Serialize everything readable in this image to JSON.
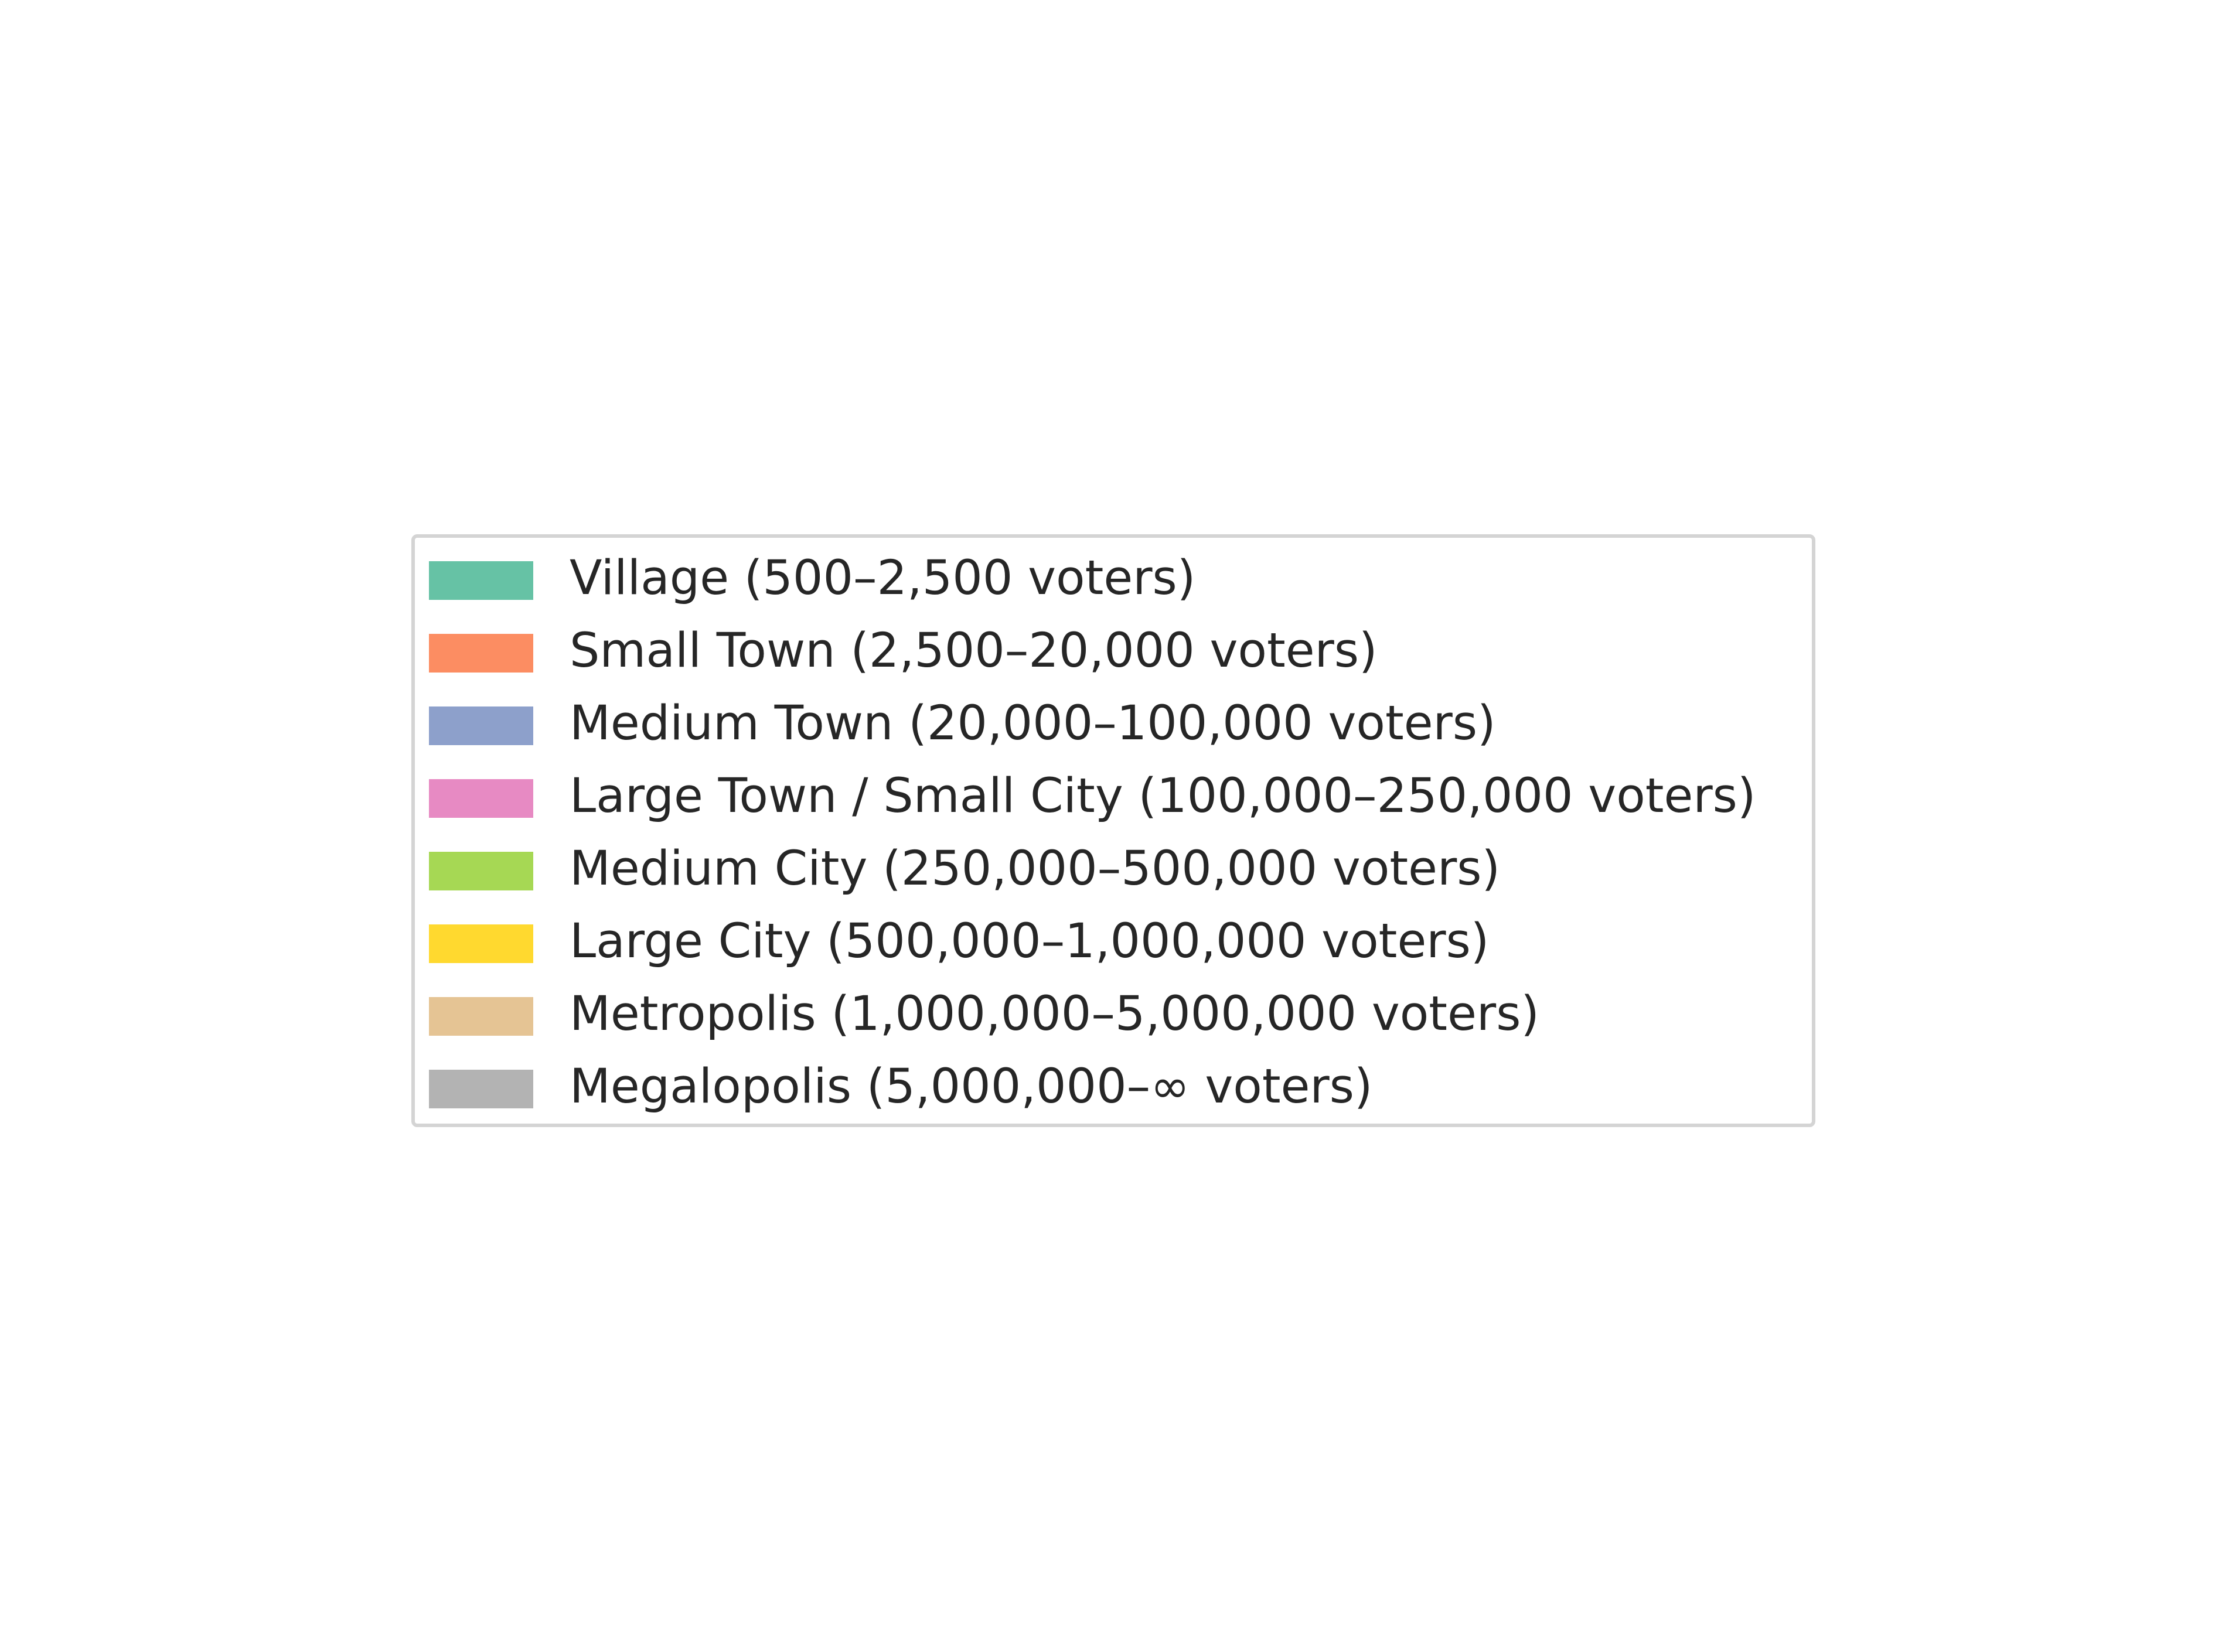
{
  "chart_data": {
    "type": "legend",
    "title": "",
    "legend": [
      {
        "label": "Village (500–2,500 voters)",
        "color": "#66c2a5"
      },
      {
        "label": "Small Town (2,500–20,000 voters)",
        "color": "#fc8d62"
      },
      {
        "label": "Medium Town (20,000–100,000 voters)",
        "color": "#8da0cb"
      },
      {
        "label": "Large Town / Small City (100,000–250,000 voters)",
        "color": "#e78ac3"
      },
      {
        "label": "Medium City (250,000–500,000 voters)",
        "color": "#a6d854"
      },
      {
        "label": "Large City (500,000–1,000,000 voters)",
        "color": "#ffd92f"
      },
      {
        "label": "Metropolis (1,000,000–5,000,000 voters)",
        "color": "#e5c494"
      },
      {
        "label": "Megalopolis (5,000,000–∞ voters)",
        "color": "#b3b3b3"
      }
    ],
    "legend_placement": "center"
  }
}
